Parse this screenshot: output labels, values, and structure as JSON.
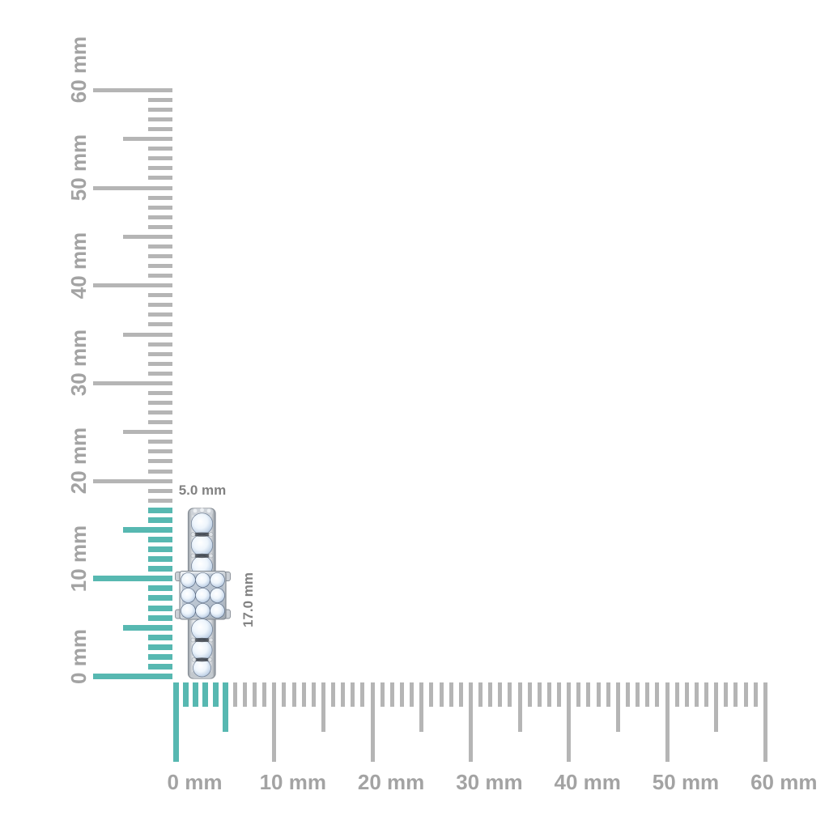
{
  "figure": {
    "type": "product-measurement-diagram",
    "background_color": "#ffffff",
    "product_description": "diamond ring band shown edge-on at ruler origin"
  },
  "product": {
    "width_label": "5.0 mm",
    "height_label": "17.0 mm",
    "width_mm": 5.0,
    "height_mm": 17.0
  },
  "rulers": {
    "unit": "mm",
    "min_mm": 0,
    "max_mm": 60,
    "minor_step_mm": 1,
    "medium_step_mm": 5,
    "major_step_mm": 10,
    "tick_color": "#b5b5b5",
    "highlight_color": "#57b8b1",
    "label_color": "#a3a3a3",
    "dimension_label_color": "#828282",
    "vertical": {
      "labels": [
        "0 mm",
        "10 mm",
        "20 mm",
        "30 mm",
        "40 mm",
        "50 mm",
        "60 mm"
      ],
      "highlight_range_mm": [
        0,
        17
      ]
    },
    "horizontal": {
      "labels": [
        "0 mm",
        "10 mm",
        "20 mm",
        "30 mm",
        "40 mm",
        "50 mm",
        "60 mm"
      ],
      "highlight_range_mm": [
        0,
        5
      ]
    }
  }
}
